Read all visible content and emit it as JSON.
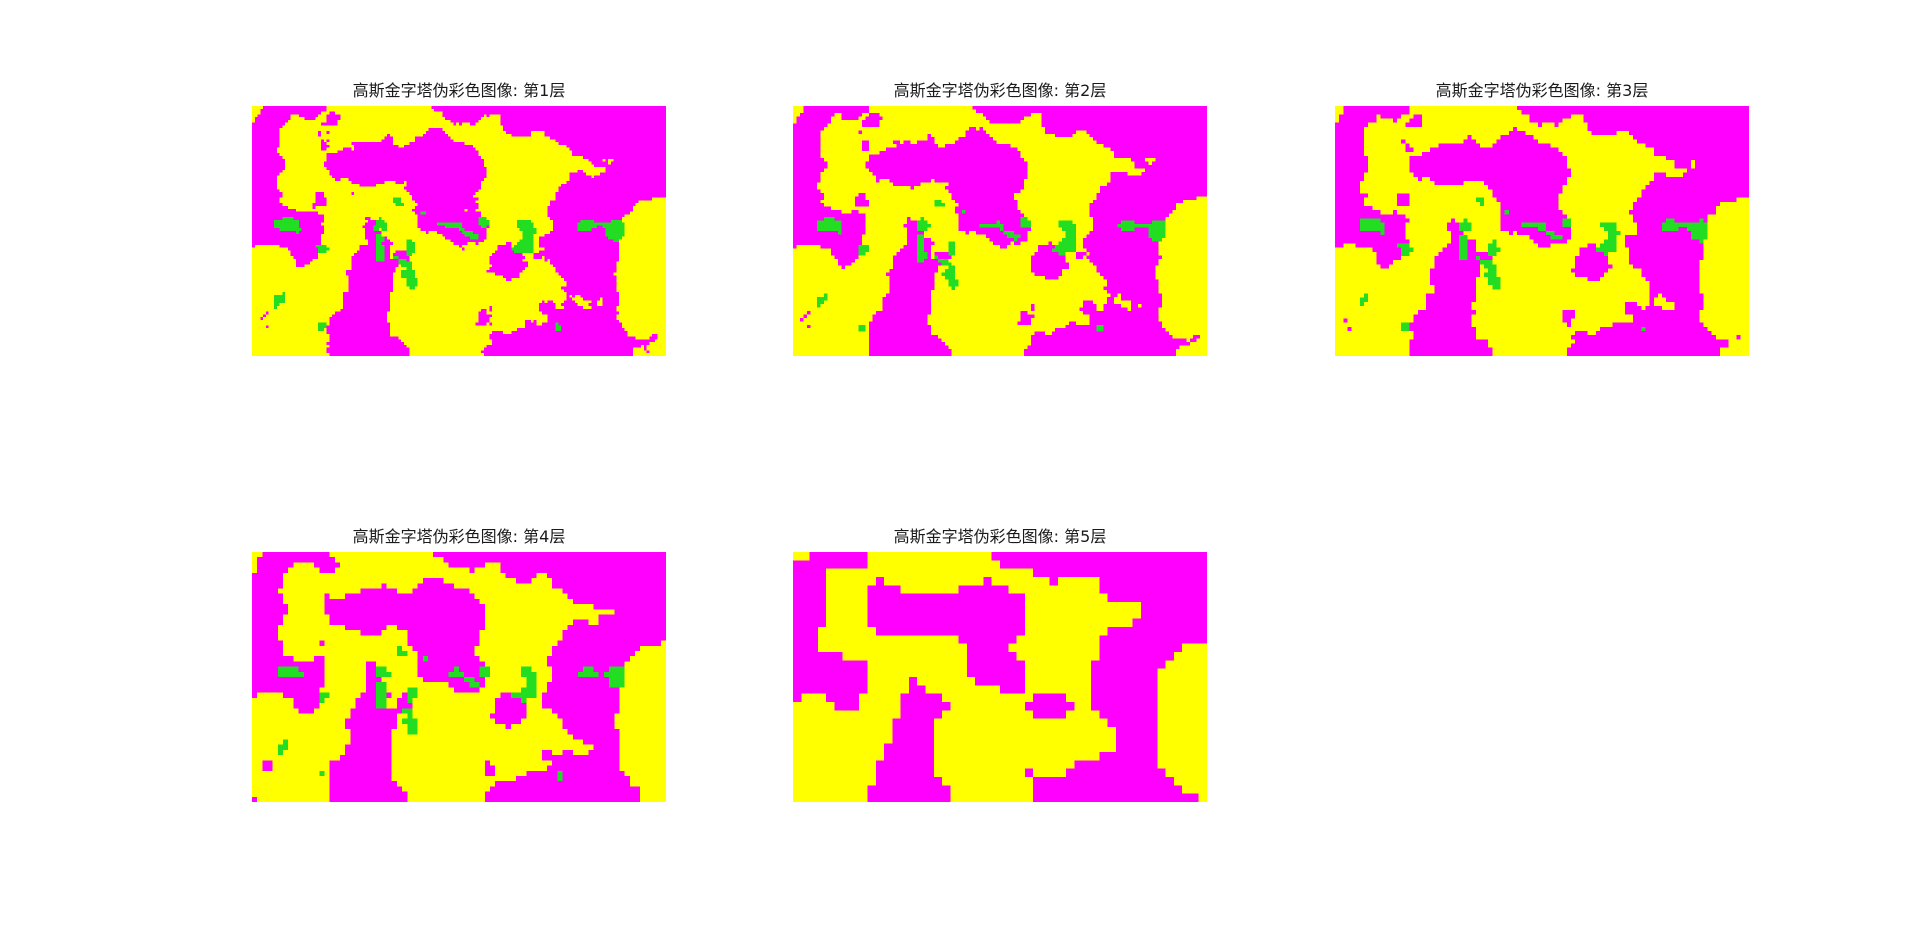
{
  "figure": {
    "panels": [
      {
        "title": "高斯金字塔伪彩色图像: 第1层",
        "level": 1
      },
      {
        "title": "高斯金字塔伪彩色图像: 第2层",
        "level": 2
      },
      {
        "title": "高斯金字塔伪彩色图像: 第3层",
        "level": 3
      },
      {
        "title": "高斯金字塔伪彩色图像: 第4层",
        "level": 4
      },
      {
        "title": "高斯金字塔伪彩色图像: 第5层",
        "level": 5
      }
    ],
    "colormap": {
      "magenta": "#ff00ff",
      "yellow": "#ffff00",
      "green": "#22dd22"
    }
  }
}
